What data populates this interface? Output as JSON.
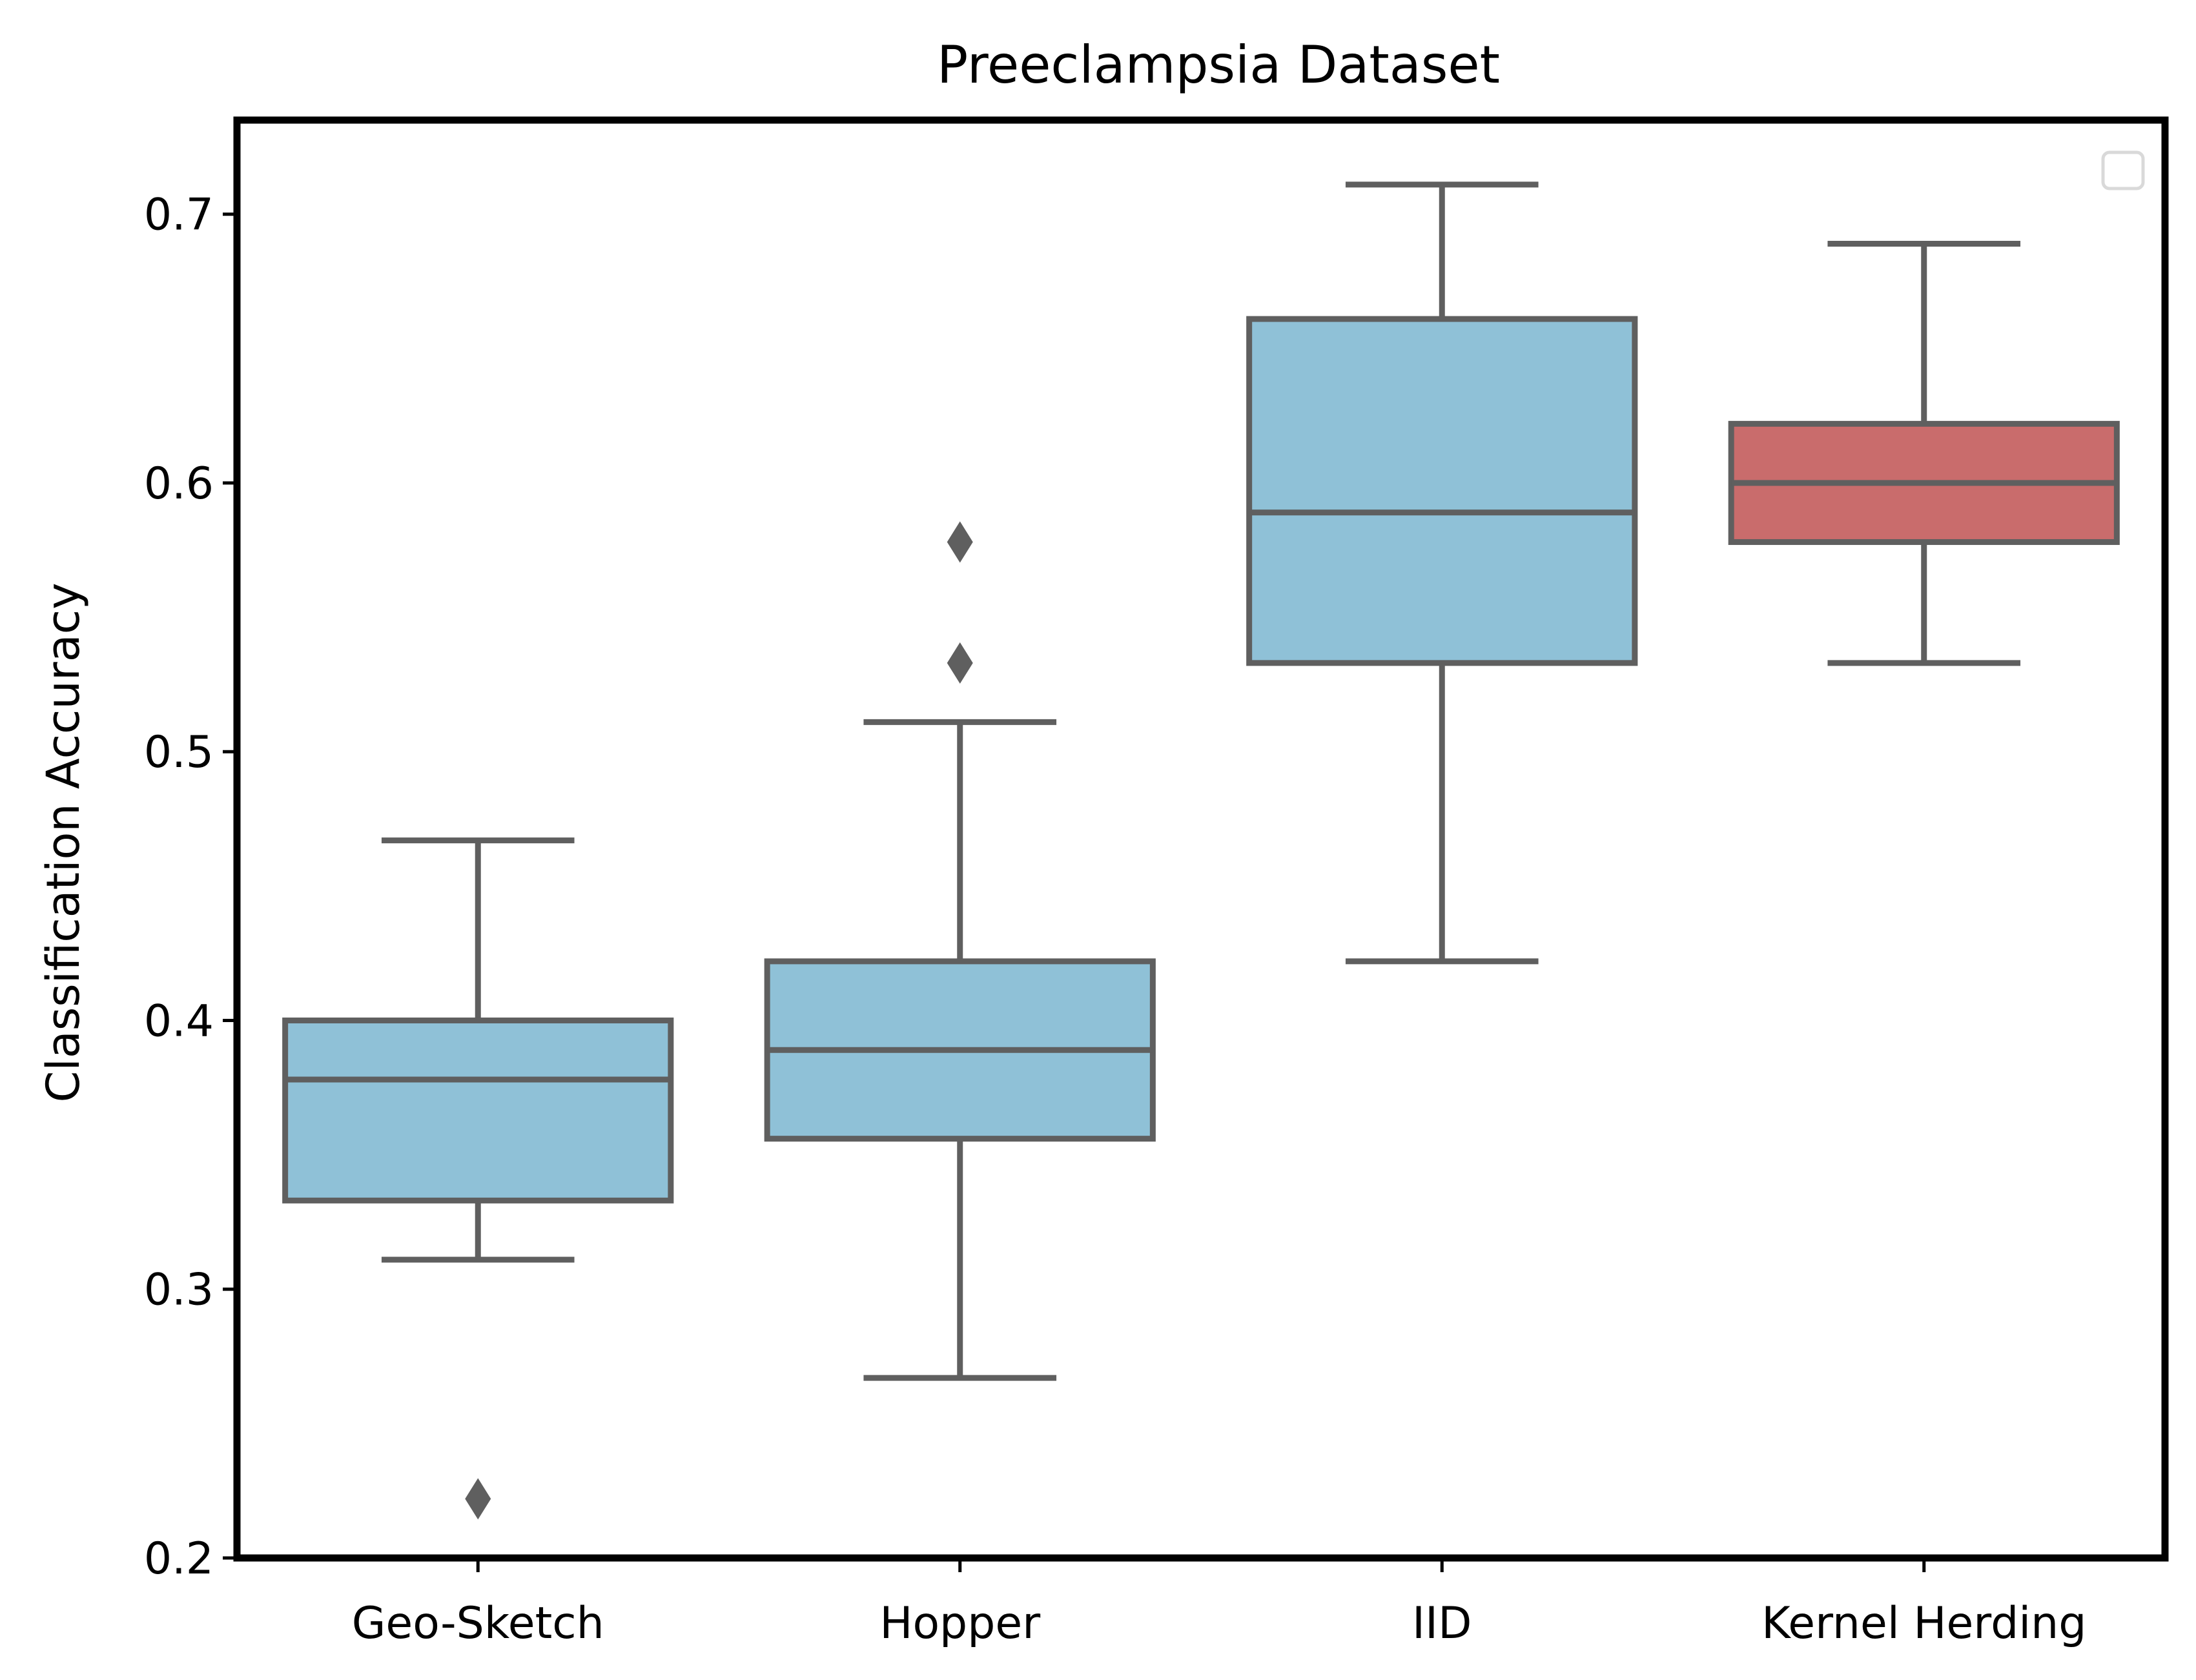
{
  "chart_data": {
    "type": "box",
    "title": "Preeclampsia Dataset",
    "xlabel": "",
    "ylabel": "Classification Accuracy",
    "ylim": [
      0.2,
      0.735
    ],
    "yticks": [
      0.2,
      0.3,
      0.4,
      0.5,
      0.6,
      0.7
    ],
    "ytick_labels": [
      "0.2",
      "0.3",
      "0.4",
      "0.5",
      "0.6",
      "0.7"
    ],
    "categories": [
      "Geo-Sketch",
      "Hopper",
      "IID",
      "Kernel Herding"
    ],
    "boxes": [
      {
        "category": "Geo-Sketch",
        "whisker_low": 0.311,
        "q1": 0.333,
        "median": 0.378,
        "q3": 0.4,
        "whisker_high": 0.467,
        "outliers": [
          0.222
        ],
        "color": "#8fc1d7"
      },
      {
        "category": "Hopper",
        "whisker_low": 0.267,
        "q1": 0.356,
        "median": 0.389,
        "q3": 0.422,
        "whisker_high": 0.511,
        "outliers": [
          0.533,
          0.578
        ],
        "color": "#8fc1d7"
      },
      {
        "category": "IID",
        "whisker_low": 0.422,
        "q1": 0.533,
        "median": 0.589,
        "q3": 0.661,
        "whisker_high": 0.711,
        "outliers": [],
        "color": "#8fc1d7"
      },
      {
        "category": "Kernel Herding",
        "whisker_low": 0.533,
        "q1": 0.578,
        "median": 0.6,
        "q3": 0.622,
        "whisker_high": 0.689,
        "outliers": [],
        "color": "#c96c6c"
      }
    ],
    "line_color": "#5f5f5f",
    "grid": false,
    "legend": {
      "position": "top-right",
      "entries": []
    }
  }
}
